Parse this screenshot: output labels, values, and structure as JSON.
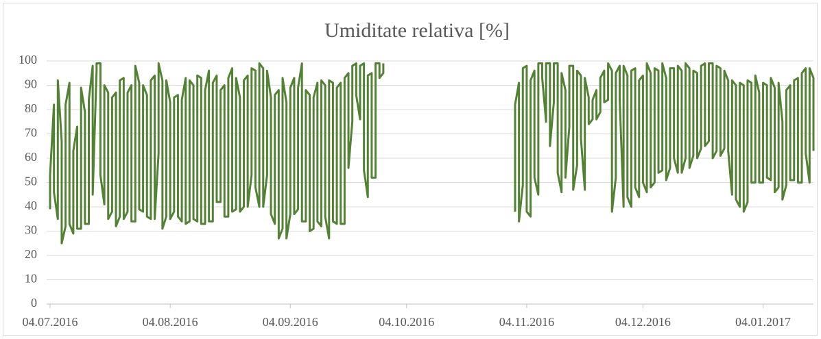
{
  "chart_data": {
    "type": "line",
    "title": "Umiditate relativa [%]",
    "x": [
      "04.07.2016",
      "04.07.2016",
      "05.07.2016",
      "05.07.2016",
      "06.07.2016",
      "06.07.2016",
      "07.07.2016",
      "07.07.2016",
      "08.07.2016",
      "08.07.2016",
      "09.07.2016",
      "09.07.2016",
      "10.07.2016",
      "10.07.2016",
      "11.07.2016",
      "11.07.2016",
      "12.07.2016",
      "12.07.2016",
      "13.07.2016",
      "13.07.2016",
      "14.07.2016",
      "14.07.2016",
      "15.07.2016",
      "15.07.2016",
      "16.07.2016",
      "16.07.2016",
      "17.07.2016",
      "17.07.2016",
      "18.07.2016",
      "18.07.2016",
      "19.07.2016",
      "19.07.2016",
      "20.07.2016",
      "20.07.2016",
      "21.07.2016",
      "21.07.2016",
      "22.07.2016",
      "22.07.2016",
      "23.07.2016",
      "23.07.2016",
      "24.07.2016",
      "24.07.2016",
      "25.07.2016",
      "25.07.2016",
      "26.07.2016",
      "26.07.2016",
      "27.07.2016",
      "27.07.2016",
      "28.07.2016",
      "28.07.2016",
      "29.07.2016",
      "29.07.2016",
      "30.07.2016",
      "30.07.2016",
      "31.07.2016",
      "31.07.2016",
      "01.08.2016",
      "01.08.2016",
      "02.08.2016",
      "02.08.2016",
      "03.08.2016",
      "03.08.2016",
      "04.08.2016",
      "04.08.2016",
      "05.08.2016",
      "05.08.2016",
      "06.08.2016",
      "06.08.2016",
      "07.08.2016",
      "07.08.2016",
      "08.08.2016",
      "08.08.2016",
      "09.08.2016",
      "09.08.2016",
      "10.08.2016",
      "10.08.2016",
      "11.08.2016",
      "11.08.2016",
      "12.08.2016",
      "12.08.2016",
      "13.08.2016",
      "13.08.2016",
      "14.08.2016",
      "14.08.2016",
      "15.08.2016",
      "15.08.2016",
      "16.08.2016",
      "16.08.2016",
      "17.08.2016",
      "17.08.2016",
      "18.08.2016",
      "18.08.2016",
      "19.08.2016",
      "19.08.2016",
      "20.08.2016",
      "20.08.2016",
      "21.08.2016",
      "21.08.2016",
      "22.08.2016",
      "22.08.2016",
      "23.08.2016",
      "23.08.2016",
      "24.08.2016",
      "24.08.2016",
      "25.08.2016",
      "25.08.2016",
      "26.08.2016",
      "26.08.2016",
      "27.08.2016",
      "27.08.2016",
      "28.08.2016",
      "28.08.2016",
      "29.08.2016",
      "29.08.2016",
      "30.08.2016",
      "30.08.2016",
      "31.08.2016",
      "31.08.2016",
      "01.09.2016",
      "01.09.2016",
      "02.09.2016",
      "02.09.2016",
      "03.09.2016",
      "03.09.2016",
      "04.09.2016",
      "04.09.2016",
      "05.09.2016",
      "05.09.2016",
      "06.09.2016",
      "06.09.2016",
      "07.09.2016",
      "07.09.2016",
      "08.09.2016",
      "08.09.2016",
      "09.09.2016",
      "09.09.2016",
      "10.09.2016",
      "10.09.2016",
      "11.09.2016",
      "11.09.2016",
      "12.09.2016",
      "12.09.2016",
      "13.09.2016",
      "13.09.2016",
      "14.09.2016",
      "14.09.2016",
      "15.09.2016",
      "15.09.2016",
      "16.09.2016",
      "16.09.2016",
      "17.09.2016",
      "17.09.2016",
      "18.09.2016",
      "18.09.2016",
      "19.09.2016",
      "19.09.2016",
      "20.09.2016",
      "20.09.2016",
      "21.09.2016",
      "21.09.2016",
      "22.09.2016",
      "22.09.2016",
      "23.09.2016",
      "23.09.2016",
      "24.09.2016",
      "24.09.2016",
      "25.09.2016",
      "25.09.2016",
      "26.09.2016",
      "26.09.2016",
      "27.09.2016",
      "27.09.2016",
      "28.09.2016",
      "28.09.2016",
      "15.10.2016",
      "01.11.2016",
      "01.11.2016",
      "02.11.2016",
      "02.11.2016",
      "03.11.2016",
      "03.11.2016",
      "04.11.2016",
      "04.11.2016",
      "05.11.2016",
      "05.11.2016",
      "06.11.2016",
      "06.11.2016",
      "07.11.2016",
      "07.11.2016",
      "08.11.2016",
      "08.11.2016",
      "09.11.2016",
      "09.11.2016",
      "10.11.2016",
      "10.11.2016",
      "11.11.2016",
      "11.11.2016",
      "12.11.2016",
      "12.11.2016",
      "13.11.2016",
      "13.11.2016",
      "14.11.2016",
      "14.11.2016",
      "15.11.2016",
      "15.11.2016",
      "16.11.2016",
      "16.11.2016",
      "17.11.2016",
      "17.11.2016",
      "18.11.2016",
      "18.11.2016",
      "19.11.2016",
      "19.11.2016",
      "20.11.2016",
      "20.11.2016",
      "21.11.2016",
      "21.11.2016",
      "22.11.2016",
      "22.11.2016",
      "23.11.2016",
      "23.11.2016",
      "24.11.2016",
      "24.11.2016",
      "25.11.2016",
      "25.11.2016",
      "26.11.2016",
      "26.11.2016",
      "27.11.2016",
      "27.11.2016",
      "28.11.2016",
      "28.11.2016",
      "29.11.2016",
      "29.11.2016",
      "30.11.2016",
      "30.11.2016",
      "01.12.2016",
      "01.12.2016",
      "02.12.2016",
      "02.12.2016",
      "03.12.2016",
      "03.12.2016",
      "04.12.2016",
      "04.12.2016",
      "05.12.2016",
      "05.12.2016",
      "06.12.2016",
      "06.12.2016",
      "07.12.2016",
      "07.12.2016",
      "08.12.2016",
      "08.12.2016",
      "09.12.2016",
      "09.12.2016",
      "10.12.2016",
      "10.12.2016",
      "11.12.2016",
      "11.12.2016",
      "12.12.2016",
      "12.12.2016",
      "13.12.2016",
      "13.12.2016",
      "14.12.2016",
      "14.12.2016",
      "15.12.2016",
      "15.12.2016",
      "16.12.2016",
      "16.12.2016",
      "17.12.2016",
      "17.12.2016",
      "18.12.2016",
      "18.12.2016",
      "19.12.2016",
      "19.12.2016",
      "20.12.2016",
      "20.12.2016",
      "21.12.2016",
      "21.12.2016",
      "22.12.2016",
      "22.12.2016",
      "23.12.2016",
      "23.12.2016",
      "24.12.2016",
      "24.12.2016",
      "25.12.2016",
      "25.12.2016",
      "26.12.2016",
      "26.12.2016",
      "27.12.2016",
      "27.12.2016",
      "28.12.2016",
      "28.12.2016",
      "29.12.2016",
      "29.12.2016",
      "30.12.2016",
      "30.12.2016",
      "31.12.2016",
      "31.12.2016",
      "01.01.2017",
      "01.01.2017",
      "02.01.2017",
      "02.01.2017",
      "03.01.2017",
      "03.01.2017",
      "04.01.2017",
      "04.01.2017",
      "05.01.2017",
      "05.01.2017",
      "06.01.2017",
      "06.01.2017",
      "07.01.2017",
      "07.01.2017",
      "08.01.2017",
      "08.01.2017",
      "09.01.2017",
      "09.01.2017",
      "10.01.2017",
      "10.01.2017",
      "11.01.2017",
      "11.01.2017",
      "12.01.2017",
      "12.01.2017",
      "13.01.2017",
      "13.01.2017",
      "14.01.2017",
      "14.01.2017",
      "15.01.2017",
      "15.01.2017",
      "16.01.2017",
      "16.01.2017",
      "17.01.2017",
      "17.01.2017"
    ],
    "series": [
      {
        "name": "Umiditate relativa",
        "color": "#548235",
        "values": [
          39,
          53,
          82,
          46,
          35,
          92,
          67,
          25,
          32,
          82,
          91,
          33,
          29,
          63,
          73,
          31,
          31,
          89,
          79,
          33,
          33,
          84,
          98,
          45,
          96,
          99,
          99,
          53,
          41,
          90,
          87,
          35,
          38,
          85,
          87,
          32,
          36,
          92,
          93,
          35,
          38,
          87,
          90,
          34,
          34,
          98,
          91,
          39,
          38,
          90,
          86,
          36,
          35,
          92,
          94,
          35,
          62,
          99,
          92,
          31,
          36,
          92,
          83,
          35,
          38,
          85,
          86,
          36,
          34,
          84,
          93,
          33,
          34,
          92,
          90,
          35,
          34,
          94,
          93,
          33,
          33,
          88,
          96,
          34,
          34,
          91,
          94,
          42,
          42,
          88,
          90,
          36,
          36,
          93,
          97,
          38,
          39,
          93,
          85,
          38,
          40,
          92,
          94,
          40,
          53,
          97,
          96,
          48,
          40,
          99,
          97,
          40,
          53,
          96,
          85,
          37,
          33,
          86,
          88,
          27,
          31,
          93,
          83,
          27,
          37,
          89,
          93,
          37,
          39,
          89,
          99,
          34,
          34,
          88,
          86,
          30,
          31,
          85,
          91,
          34,
          32,
          92,
          90,
          36,
          27,
          92,
          91,
          34,
          33,
          89,
          91,
          33,
          33,
          93,
          95,
          56,
          75,
          98,
          99,
          86,
          76,
          98,
          99,
          55,
          44,
          94,
          95,
          52,
          52,
          99,
          99,
          93,
          95,
          99,
          null,
          38,
          82,
          91,
          34,
          49,
          97,
          98,
          38,
          36,
          92,
          96,
          52,
          45,
          99,
          99,
          93,
          75,
          99,
          99,
          65,
          83,
          99,
          99,
          54,
          46,
          95,
          88,
          52,
          73,
          98,
          98,
          47,
          57,
          96,
          94,
          68,
          47,
          93,
          85,
          74,
          76,
          84,
          88,
          76,
          79,
          93,
          96,
          83,
          84,
          99,
          96,
          38,
          52,
          95,
          98,
          84,
          40,
          98,
          94,
          44,
          40,
          96,
          97,
          48,
          44,
          92,
          94,
          50,
          46,
          99,
          95,
          48,
          50,
          97,
          96,
          54,
          55,
          99,
          93,
          51,
          56,
          97,
          97,
          60,
          54,
          98,
          96,
          54,
          60,
          99,
          97,
          56,
          61,
          96,
          95,
          60,
          64,
          98,
          99,
          65,
          67,
          99,
          99,
          60,
          63,
          98,
          97,
          61,
          64,
          96,
          92,
          63,
          45,
          92,
          90,
          43,
          40,
          91,
          90,
          38,
          42,
          92,
          91,
          50,
          50,
          94,
          87,
          50,
          50,
          91,
          90,
          52,
          51,
          93,
          89,
          46,
          48,
          91,
          75,
          43,
          49,
          88,
          90,
          51,
          51,
          92,
          93,
          50,
          50,
          95,
          97,
          62,
          50,
          97,
          93,
          63
        ]
      }
    ],
    "xlim": [
      "04.07.2016",
      "17.01.2017"
    ],
    "xticks": [
      "04.07.2016",
      "04.08.2016",
      "04.09.2016",
      "04.10.2016",
      "04.11.2016",
      "04.12.2016",
      "04.01.2017"
    ],
    "ylim": [
      0,
      100
    ],
    "yticks": [
      0,
      10,
      20,
      30,
      40,
      50,
      60,
      70,
      80,
      90,
      100
    ],
    "grid": true
  }
}
